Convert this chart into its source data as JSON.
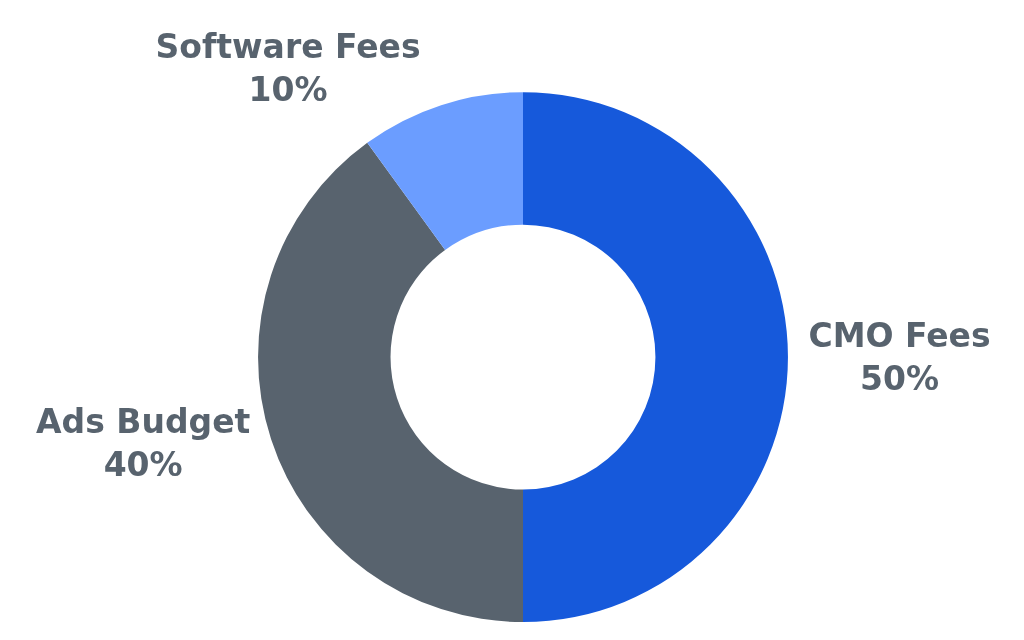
{
  "chart_data": {
    "type": "donut",
    "categories": [
      "CMO Fees",
      "Ads Budget",
      "Software Fees"
    ],
    "values": [
      50,
      40,
      10
    ],
    "value_labels": [
      "50%",
      "40%",
      "10%"
    ],
    "colors": [
      "#1659db",
      "#58636e",
      "#6b9dff"
    ],
    "legend": false
  }
}
